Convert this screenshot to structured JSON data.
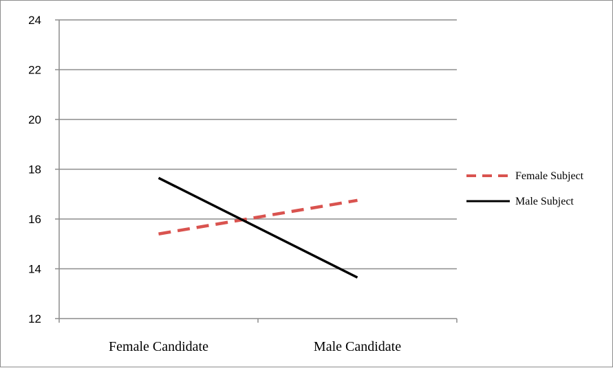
{
  "chart_data": {
    "type": "line",
    "categories": [
      "Female Candidate",
      "Male Candidate"
    ],
    "series": [
      {
        "name": "Female Subject",
        "values": [
          15.4,
          16.75
        ],
        "color": "#d9534f",
        "dash": "dashed"
      },
      {
        "name": "Male Subject",
        "values": [
          17.65,
          13.65
        ],
        "color": "#000000",
        "dash": "solid"
      }
    ],
    "title": "",
    "xlabel": "",
    "ylabel": "",
    "ylim": [
      12,
      24
    ],
    "yticks": [
      "12",
      "14",
      "16",
      "18",
      "20",
      "22",
      "24"
    ],
    "grid": true,
    "legend": "right"
  }
}
